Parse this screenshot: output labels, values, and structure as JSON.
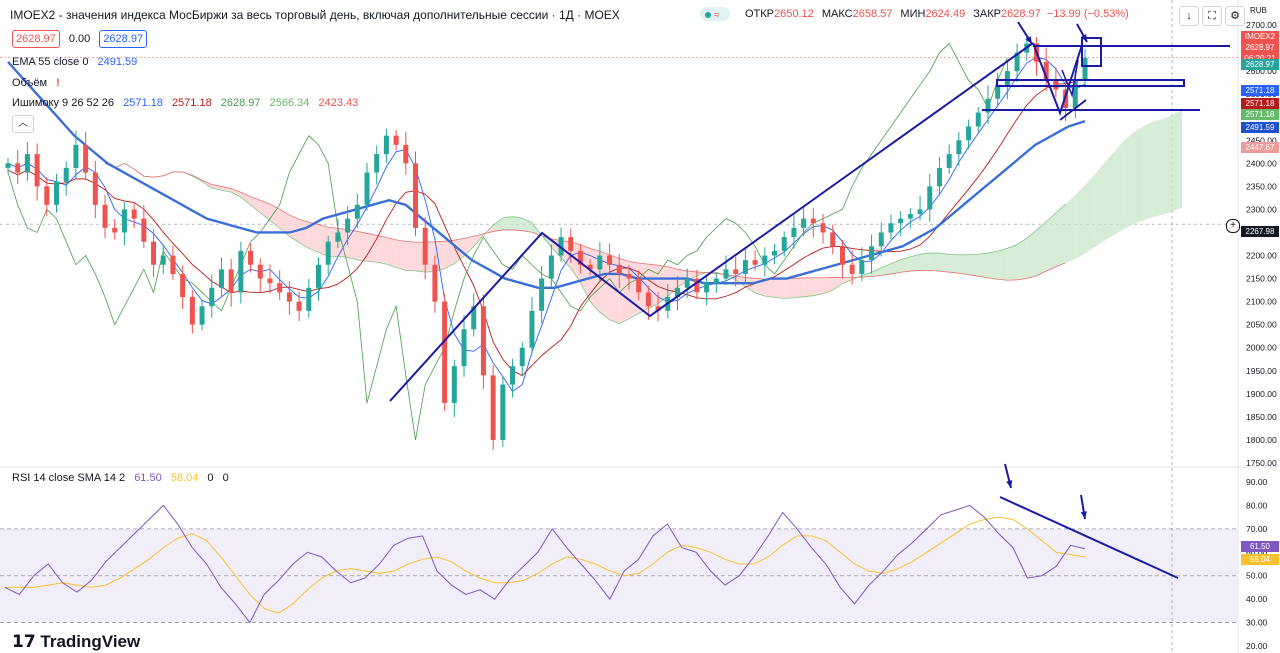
{
  "header": {
    "symbol": "IMOEX2",
    "title": "IMOEX2 - значения индекса МосБиржи за весь торговый день, включая дополнительные сессии · 1Д · MOEX",
    "open_label": "ОТКР",
    "open": "2650.12",
    "high_label": "МАКС",
    "high": "2658.57",
    "low_label": "МИН",
    "low": "2624.49",
    "close_label": "ЗАКР",
    "close": "2628.97",
    "change": "−13.99 (−0.53%)",
    "currency": "RUB"
  },
  "legend": {
    "bid": "2628.97",
    "spread": "0.00",
    "ask": "2628.97",
    "ema_label": "EMA 55 close 0",
    "ema_value": "2491.59",
    "volume_label": "Объём",
    "volume_warn": "!",
    "ichimoku_label": "Ишимоку 9 26 52 26",
    "ichimoku_values": [
      "2571.18",
      "2571.18",
      "2628.97",
      "2566.34",
      "2423.43"
    ],
    "rsi_label": "RSI 14 close SMA 14 2",
    "rsi_value": "61.50",
    "rsi_sma": "58.04",
    "rsi_extra": [
      "0",
      "0"
    ]
  },
  "price_scale": {
    "ticks": [
      "2700.00",
      "2650.00",
      "2600.00",
      "2550.00",
      "2500.00",
      "2450.00",
      "2400.00",
      "2350.00",
      "2300.00",
      "2250.00",
      "2200.00",
      "2150.00",
      "2100.00",
      "2050.00",
      "2000.00",
      "1950.00",
      "1900.00",
      "1850.00",
      "1800.00",
      "1750.00"
    ],
    "labels": [
      {
        "text": "IMOEX2",
        "color": "#ef5350"
      },
      {
        "text": "2628.97",
        "color": "#ef5350"
      },
      {
        "text": "06:20:21",
        "color": "#ef5350"
      },
      {
        "text": "2628.97",
        "color": "#26a69a"
      },
      {
        "text": "2571.18",
        "color": "#2962ff"
      },
      {
        "text": "2571.18",
        "color": "#b71c1c"
      },
      {
        "text": "2571.18",
        "color": "#66bb6a"
      },
      {
        "text": "2491.59",
        "color": "#1e50d2"
      },
      {
        "text": "2447.67",
        "color": "#ef9a9a"
      },
      {
        "text": "2267.98",
        "color": "#131722"
      }
    ]
  },
  "rsi_scale": {
    "ticks": [
      "90.00",
      "80.00",
      "70.00",
      "60.00",
      "50.00",
      "40.00",
      "30.00",
      "20.00"
    ],
    "labels": [
      {
        "text": "61.50",
        "color": "#7e57c2"
      },
      {
        "text": "58.04",
        "color": "#fbc02d"
      }
    ]
  },
  "toolbar": {
    "arrow_icon": "arrow-down-icon",
    "fullscreen_icon": "fullscreen-icon",
    "settings_icon": "gear-icon"
  },
  "brand": "TradingView",
  "colors": {
    "up": "#26a69a",
    "down": "#ef5350",
    "ema": "#3a6fd8",
    "tenkan": "#2962ff",
    "kijun": "#b71c1c",
    "chikou": "#43a047",
    "cloud_up": "#c8e6c9",
    "cloud_down": "#ffcdd2",
    "rsi": "#7e57c2",
    "rsi_sma": "#fbc02d",
    "drawing": "#1a1aa6"
  },
  "chart_data": [
    {
      "type": "candlestick",
      "title": "IMOEX2 · 1Д · MOEX",
      "ylim": [
        1750,
        2700
      ],
      "series": [
        {
          "name": "IMOEX2",
          "values": [
            2400,
            2380,
            2420,
            2350,
            2310,
            2360,
            2390,
            2440,
            2380,
            2310,
            2260,
            2250,
            2300,
            2280,
            2230,
            2180,
            2200,
            2160,
            2110,
            2050,
            2090,
            2130,
            2170,
            2120,
            2210,
            2180,
            2150,
            2140,
            2120,
            2100,
            2080,
            2130,
            2180,
            2230,
            2250,
            2280,
            2310,
            2380,
            2420,
            2460,
            2440,
            2400,
            2260,
            2180,
            2100,
            1880,
            1960,
            2040,
            2090,
            1940,
            1800,
            1920,
            1960,
            2000,
            2080,
            2150,
            2200,
            2240,
            2210,
            2180,
            2170,
            2200,
            2180,
            2160,
            2150,
            2120,
            2090,
            2080,
            2110,
            2130,
            2150,
            2120,
            2140,
            2150,
            2170,
            2160,
            2190,
            2180,
            2200,
            2210,
            2240,
            2260,
            2280,
            2270,
            2250,
            2220,
            2180,
            2160,
            2190,
            2220,
            2250,
            2270,
            2280,
            2290,
            2300,
            2350,
            2390,
            2420,
            2450,
            2480,
            2510,
            2540,
            2570,
            2600,
            2640,
            2660,
            2620,
            2580,
            2560,
            2520,
            2580,
            2628.97
          ]
        },
        {
          "name": "EMA 55",
          "values": [
            2620,
            2580,
            2540,
            2500,
            2460,
            2430,
            2400,
            2380,
            2360,
            2340,
            2320,
            2300,
            2280,
            2270,
            2260,
            2250,
            2250,
            2250,
            2260,
            2280,
            2290,
            2300,
            2310,
            2320,
            2310,
            2280,
            2250,
            2220,
            2190,
            2170,
            2150,
            2140,
            2130,
            2130,
            2140,
            2150,
            2160,
            2160,
            2150,
            2150,
            2150,
            2150,
            2140,
            2140,
            2140,
            2140,
            2150,
            2150,
            2160,
            2170,
            2180,
            2190,
            2200,
            2210,
            2220,
            2240,
            2260,
            2290,
            2320,
            2350,
            2380,
            2410,
            2440,
            2460,
            2480,
            2491.59
          ]
        },
        {
          "name": "RSI 14",
          "values": [
            45,
            42,
            50,
            55,
            47,
            43,
            48,
            56,
            62,
            68,
            74,
            80,
            72,
            62,
            55,
            45,
            38,
            30,
            42,
            48,
            55,
            60,
            58,
            52,
            47,
            49,
            55,
            63,
            66,
            67,
            52,
            46,
            42,
            44,
            40,
            48,
            54,
            60,
            70,
            62,
            55,
            48,
            40,
            52,
            57,
            67,
            72,
            62,
            60,
            52,
            46,
            50,
            58,
            67,
            77,
            70,
            62,
            55,
            45,
            38,
            46,
            52,
            59,
            64,
            70,
            76,
            78,
            80,
            75,
            68,
            62,
            49,
            50,
            54,
            63,
            61.5
          ]
        },
        {
          "name": "SMA 14",
          "values": [
            45,
            45,
            45,
            46,
            47,
            46,
            45,
            46,
            49,
            53,
            57,
            62,
            66,
            68,
            65,
            58,
            50,
            42,
            36,
            34,
            38,
            44,
            49,
            52,
            53,
            52,
            51,
            52,
            55,
            57,
            58,
            56,
            52,
            49,
            47,
            47,
            48,
            51,
            55,
            58,
            57,
            55,
            52,
            50,
            51,
            55,
            60,
            63,
            62,
            60,
            57,
            55,
            55,
            58,
            63,
            67,
            67,
            65,
            60,
            55,
            52,
            51,
            53,
            56,
            60,
            64,
            68,
            72,
            74,
            75,
            74,
            70,
            65,
            60,
            59,
            58.04
          ]
        }
      ]
    }
  ]
}
